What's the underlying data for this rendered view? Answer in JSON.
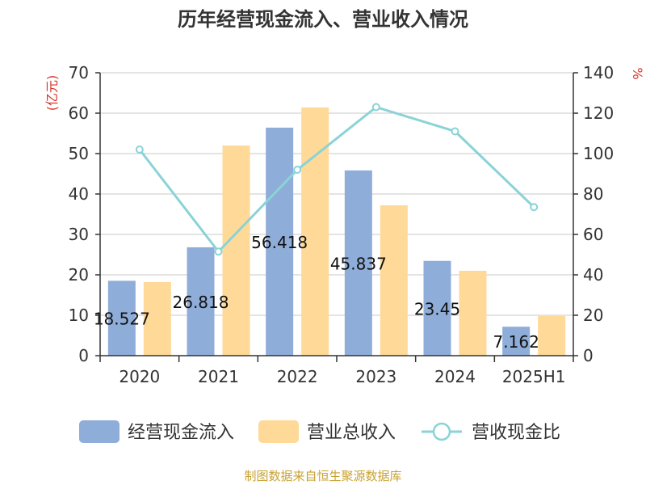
{
  "chart_data": {
    "type": "bar",
    "title": "历年经营现金流入、营业收入情况",
    "y_left_label": "(亿元)",
    "y_right_label": "%",
    "categories": [
      "2020",
      "2021",
      "2022",
      "2023",
      "2024",
      "2025H1"
    ],
    "y_left_ticks": [
      "0",
      "10",
      "20",
      "30",
      "40",
      "50",
      "60",
      "70"
    ],
    "y_right_ticks": [
      "0",
      "20",
      "40",
      "60",
      "80",
      "100",
      "120",
      "140"
    ],
    "y_left_range": [
      0,
      70
    ],
    "y_right_range": [
      0,
      140
    ],
    "series": [
      {
        "name": "经营现金流入",
        "kind": "bar",
        "axis": "left",
        "color": "#8fadd9",
        "values": [
          18.527,
          26.818,
          56.418,
          45.837,
          23.45,
          7.162
        ],
        "labels": [
          "18.527",
          "26.818",
          "56.418",
          "45.837",
          "23.45",
          "7.162"
        ]
      },
      {
        "name": "营业总收入",
        "kind": "bar",
        "axis": "left",
        "color": "#ffd998",
        "values": [
          18.2,
          52.0,
          61.4,
          37.2,
          21.0,
          9.8
        ]
      },
      {
        "name": "营收现金比",
        "kind": "line",
        "axis": "right",
        "color": "#8ad3d6",
        "values": [
          102,
          51.5,
          92,
          123,
          111,
          73.5
        ]
      }
    ],
    "grid": true,
    "legend": "bottom",
    "footer": "制图数据来自恒生聚源数据库"
  }
}
